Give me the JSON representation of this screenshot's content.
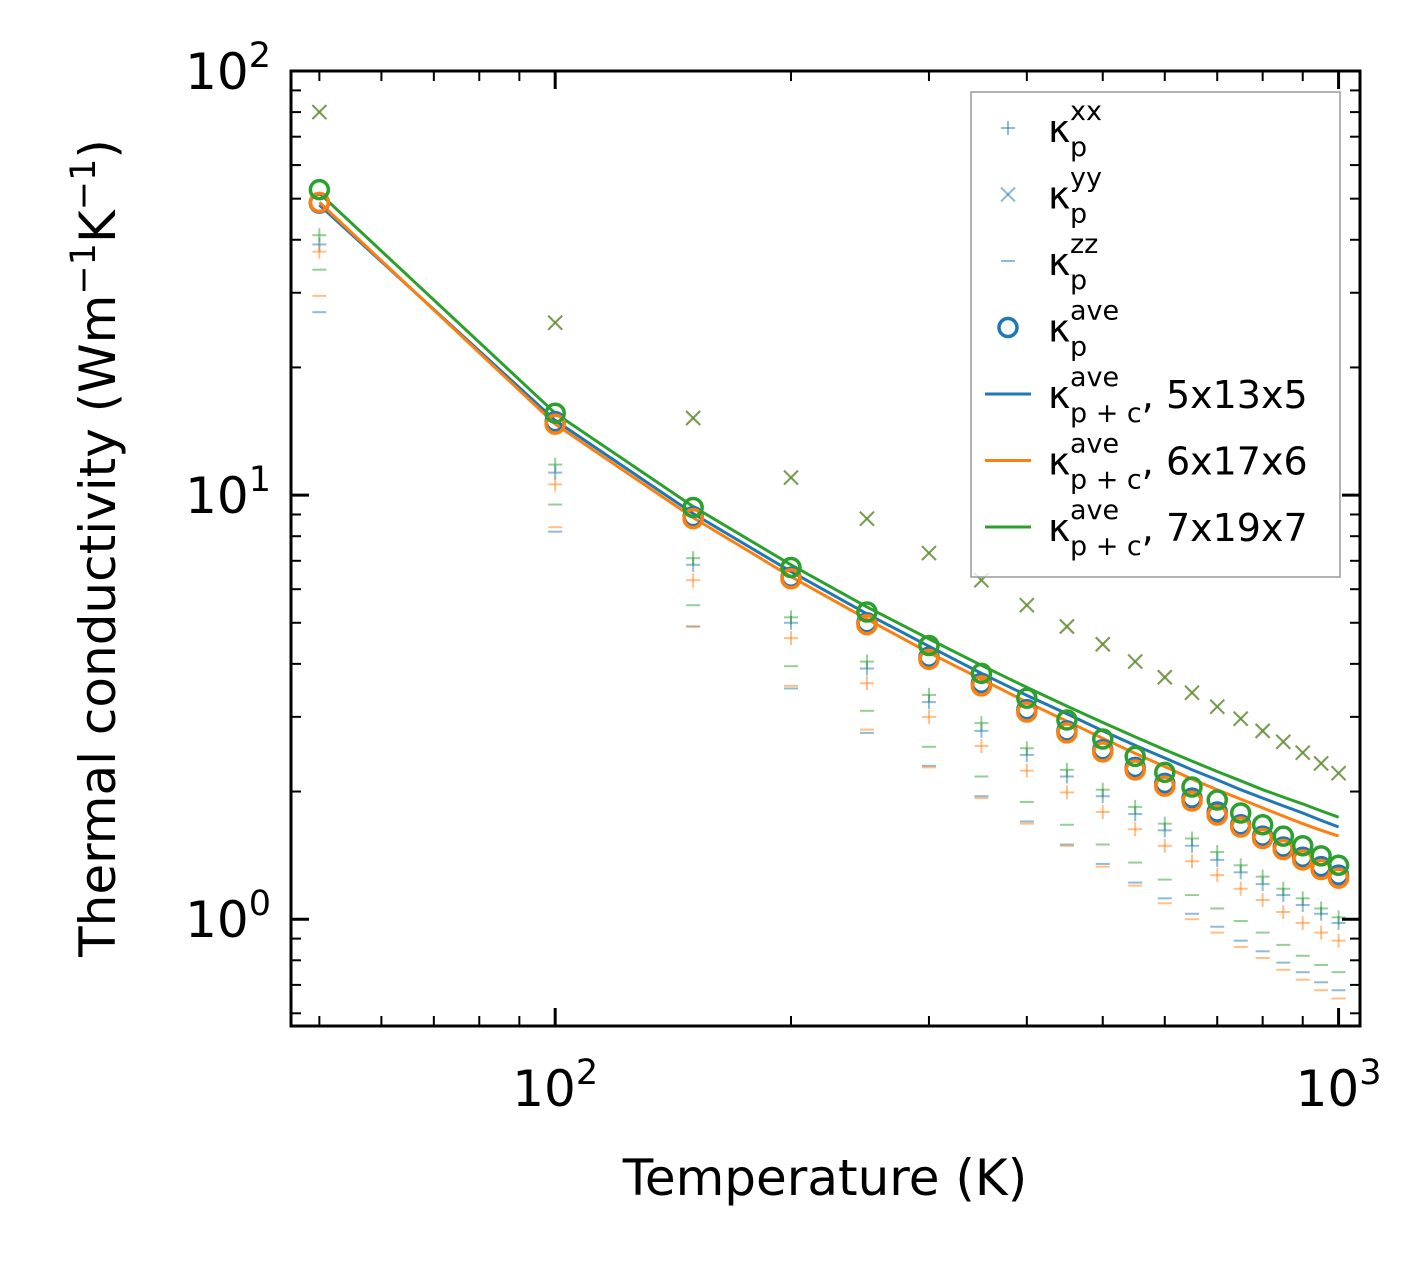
{
  "chart_data": {
    "type": "scatter",
    "xscale": "log",
    "yscale": "log",
    "xlim": [
      46,
      1065
    ],
    "ylim": [
      0.56,
      100
    ],
    "xlabel": "Temperature (K)",
    "ylabel_main": "Thermal conductivity (Wm",
    "ylabel_exp1": "−1",
    "ylabel_mid": "K",
    "ylabel_exp2": "−1",
    "ylabel_end": ")",
    "x_ticks": [
      {
        "value": 100,
        "base": "10",
        "exp": "2"
      },
      {
        "value": 1000,
        "base": "10",
        "exp": "3"
      }
    ],
    "y_ticks": [
      {
        "value": 1,
        "base": "10",
        "exp": "0"
      },
      {
        "value": 10,
        "base": "10",
        "exp": "1"
      },
      {
        "value": 100,
        "base": "10",
        "exp": "2"
      }
    ],
    "colors": {
      "blue": "#1f77b4",
      "orange": "#ff7f0e",
      "green": "#2ca02c"
    },
    "temperatures": [
      50,
      100,
      150,
      200,
      250,
      300,
      350,
      400,
      450,
      500,
      550,
      600,
      650,
      700,
      750,
      800,
      850,
      900,
      950,
      1000
    ],
    "kappa_p_yy": [
      80,
      25.5,
      15.2,
      11.0,
      8.8,
      7.3,
      6.3,
      5.5,
      4.9,
      4.45,
      4.05,
      3.72,
      3.42,
      3.17,
      2.97,
      2.78,
      2.62,
      2.47,
      2.33,
      2.21
    ],
    "kappa_p_xx": {
      "blue": [
        39.0,
        11.3,
        6.85,
        5.0,
        3.9,
        3.25,
        2.78,
        2.44,
        2.17,
        1.95,
        1.77,
        1.62,
        1.49,
        1.38,
        1.29,
        1.21,
        1.14,
        1.08,
        1.03,
        0.98
      ],
      "orange": [
        37.5,
        10.6,
        6.3,
        4.6,
        3.6,
        3.0,
        2.56,
        2.24,
        1.99,
        1.79,
        1.63,
        1.49,
        1.37,
        1.27,
        1.18,
        1.11,
        1.04,
        0.98,
        0.93,
        0.89
      ],
      "green": [
        41.0,
        11.8,
        7.1,
        5.15,
        4.05,
        3.38,
        2.9,
        2.53,
        2.25,
        2.02,
        1.84,
        1.68,
        1.55,
        1.44,
        1.34,
        1.26,
        1.18,
        1.12,
        1.06,
        1.01
      ]
    },
    "kappa_p_zz": {
      "blue": [
        27.0,
        8.2,
        4.9,
        3.5,
        2.75,
        2.3,
        1.95,
        1.7,
        1.5,
        1.35,
        1.22,
        1.12,
        1.03,
        0.96,
        0.89,
        0.84,
        0.79,
        0.75,
        0.71,
        0.68
      ],
      "orange": [
        29.5,
        8.4,
        4.9,
        3.55,
        2.8,
        2.28,
        1.93,
        1.68,
        1.49,
        1.33,
        1.2,
        1.09,
        1.0,
        0.93,
        0.86,
        0.81,
        0.76,
        0.72,
        0.68,
        0.65
      ],
      "green": [
        34.0,
        9.5,
        5.5,
        3.95,
        3.1,
        2.55,
        2.17,
        1.89,
        1.67,
        1.5,
        1.36,
        1.24,
        1.14,
        1.06,
        0.99,
        0.93,
        0.87,
        0.82,
        0.78,
        0.75
      ]
    },
    "kappa_p_ave": {
      "blue": [
        48.8,
        14.9,
        8.9,
        6.4,
        5.0,
        4.15,
        3.6,
        3.12,
        2.78,
        2.51,
        2.28,
        2.09,
        1.93,
        1.79,
        1.67,
        1.57,
        1.48,
        1.4,
        1.33,
        1.27
      ],
      "orange": [
        49.0,
        14.7,
        8.8,
        6.35,
        4.95,
        4.1,
        3.55,
        3.08,
        2.75,
        2.48,
        2.25,
        2.06,
        1.9,
        1.76,
        1.65,
        1.55,
        1.46,
        1.38,
        1.31,
        1.25
      ],
      "green": [
        52.5,
        15.6,
        9.35,
        6.75,
        5.3,
        4.42,
        3.8,
        3.32,
        2.95,
        2.66,
        2.42,
        2.22,
        2.05,
        1.91,
        1.78,
        1.67,
        1.57,
        1.49,
        1.41,
        1.34
      ]
    },
    "kappa_pc_ave_lines": [
      {
        "name": "5x13x5",
        "color": "blue",
        "values": [
          48.3,
          15.0,
          9.05,
          6.6,
          5.25,
          4.4,
          3.8,
          3.37,
          3.05,
          2.78,
          2.57,
          2.4,
          2.25,
          2.13,
          2.02,
          1.93,
          1.85,
          1.78,
          1.71,
          1.65
        ]
      },
      {
        "name": "6x17x6",
        "color": "orange",
        "values": [
          49.0,
          14.7,
          8.85,
          6.42,
          5.1,
          4.25,
          3.68,
          3.25,
          2.93,
          2.67,
          2.46,
          2.29,
          2.14,
          2.02,
          1.92,
          1.83,
          1.75,
          1.68,
          1.62,
          1.57
        ]
      },
      {
        "name": "7x19x7",
        "color": "green",
        "values": [
          51.5,
          15.6,
          9.4,
          6.85,
          5.45,
          4.58,
          3.97,
          3.52,
          3.18,
          2.91,
          2.69,
          2.51,
          2.36,
          2.23,
          2.12,
          2.02,
          1.94,
          1.87,
          1.8,
          1.74
        ]
      }
    ],
    "legend": {
      "position": "upper right",
      "entries": [
        {
          "symbol": "kappa",
          "sub": "p",
          "sup": "xx",
          "suffix": "",
          "marker": "plus"
        },
        {
          "symbol": "kappa",
          "sub": "p",
          "sup": "yy",
          "suffix": "",
          "marker": "x"
        },
        {
          "symbol": "kappa",
          "sub": "p",
          "sup": "zz",
          "suffix": "",
          "marker": "dash"
        },
        {
          "symbol": "kappa",
          "sub": "p",
          "sup": "ave",
          "suffix": "",
          "marker": "circle"
        },
        {
          "symbol": "kappa",
          "sub": "p + c",
          "sup": "ave",
          "suffix": ", 5x13x5",
          "marker": "line-blue"
        },
        {
          "symbol": "kappa",
          "sub": "p + c",
          "sup": "ave",
          "suffix": ", 6x17x6",
          "marker": "line-orange"
        },
        {
          "symbol": "kappa",
          "sub": "p + c",
          "sup": "ave",
          "suffix": ", 7x19x7",
          "marker": "line-green"
        }
      ],
      "kappa_char": "κ"
    }
  }
}
